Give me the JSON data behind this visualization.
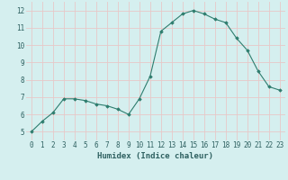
{
  "x": [
    0,
    1,
    2,
    3,
    4,
    5,
    6,
    7,
    8,
    9,
    10,
    11,
    12,
    13,
    14,
    15,
    16,
    17,
    18,
    19,
    20,
    21,
    22,
    23
  ],
  "y": [
    5.0,
    5.6,
    6.1,
    6.9,
    6.9,
    6.8,
    6.6,
    6.5,
    6.3,
    6.0,
    6.9,
    8.2,
    10.8,
    11.3,
    11.8,
    12.0,
    11.8,
    11.5,
    11.3,
    10.4,
    9.7,
    8.5,
    7.6,
    7.4
  ],
  "line_color": "#2e7d6e",
  "marker": "D",
  "marker_size": 1.8,
  "bg_color": "#d5efef",
  "grid_color": "#c8e8e8",
  "xlabel": "Humidex (Indice chaleur)",
  "xlim": [
    -0.5,
    23.5
  ],
  "ylim": [
    4.5,
    12.5
  ],
  "yticks": [
    5,
    6,
    7,
    8,
    9,
    10,
    11,
    12
  ],
  "xticks": [
    0,
    1,
    2,
    3,
    4,
    5,
    6,
    7,
    8,
    9,
    10,
    11,
    12,
    13,
    14,
    15,
    16,
    17,
    18,
    19,
    20,
    21,
    22,
    23
  ],
  "tick_color": "#2e6060",
  "label_fontsize": 6.5,
  "tick_fontsize": 5.5
}
